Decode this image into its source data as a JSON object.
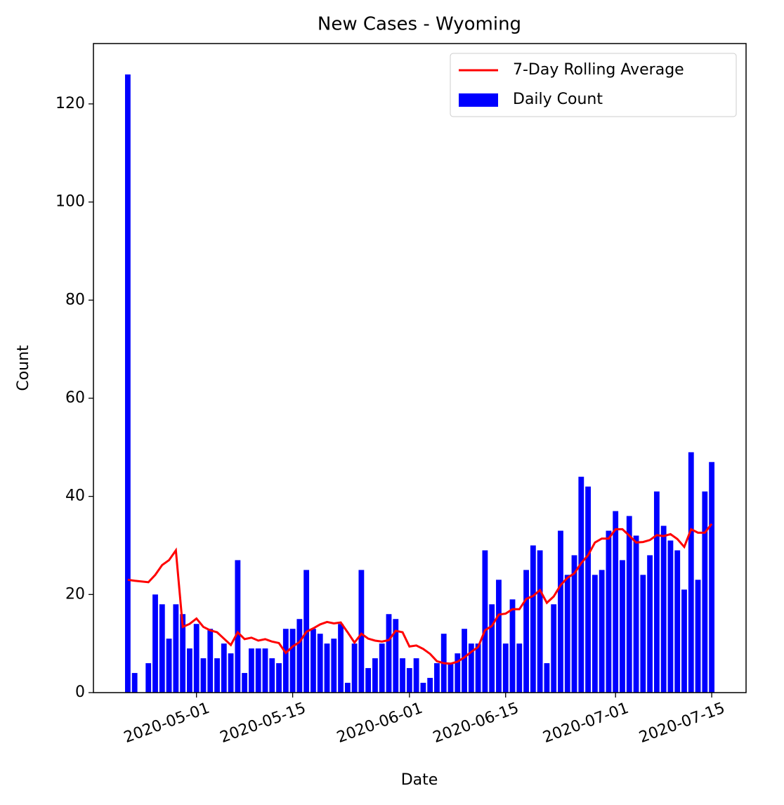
{
  "chart_data": {
    "type": "bar",
    "title": "New Cases - Wyoming",
    "x_label": "Date",
    "y_label": "Count",
    "x": [
      "2020-04-21",
      "2020-04-22",
      "2020-04-24",
      "2020-04-25",
      "2020-04-26",
      "2020-04-27",
      "2020-04-28",
      "2020-04-29",
      "2020-04-30",
      "2020-05-01",
      "2020-05-02",
      "2020-05-03",
      "2020-05-04",
      "2020-05-05",
      "2020-05-06",
      "2020-05-07",
      "2020-05-08",
      "2020-05-09",
      "2020-05-10",
      "2020-05-11",
      "2020-05-12",
      "2020-05-13",
      "2020-05-14",
      "2020-05-15",
      "2020-05-16",
      "2020-05-17",
      "2020-05-18",
      "2020-05-19",
      "2020-05-20",
      "2020-05-21",
      "2020-05-22",
      "2020-05-23",
      "2020-05-24",
      "2020-05-25",
      "2020-05-26",
      "2020-05-27",
      "2020-05-28",
      "2020-05-29",
      "2020-05-30",
      "2020-05-31",
      "2020-06-01",
      "2020-06-02",
      "2020-06-03",
      "2020-06-04",
      "2020-06-05",
      "2020-06-06",
      "2020-06-07",
      "2020-06-08",
      "2020-06-09",
      "2020-06-10",
      "2020-06-11",
      "2020-06-12",
      "2020-06-13",
      "2020-06-14",
      "2020-06-15",
      "2020-06-16",
      "2020-06-17",
      "2020-06-18",
      "2020-06-19",
      "2020-06-20",
      "2020-06-21",
      "2020-06-22",
      "2020-06-23",
      "2020-06-24",
      "2020-06-25",
      "2020-06-26",
      "2020-06-27",
      "2020-06-28",
      "2020-06-29",
      "2020-06-30",
      "2020-07-01",
      "2020-07-02",
      "2020-07-03",
      "2020-07-04",
      "2020-07-05",
      "2020-07-06",
      "2020-07-07",
      "2020-07-08",
      "2020-07-09",
      "2020-07-10",
      "2020-07-11",
      "2020-07-12",
      "2020-07-13",
      "2020-07-14",
      "2020-07-15"
    ],
    "series": [
      {
        "name": "7-Day Rolling Average",
        "type": "line",
        "color": "#ff0000",
        "values": [
          23,
          22.8,
          22.5,
          24,
          26,
          27,
          29,
          13.4,
          14,
          15.1,
          13.4,
          12.7,
          12.3,
          11,
          9.7,
          12.3,
          10.9,
          11.2,
          10.6,
          10.9,
          10.4,
          10.1,
          8.1,
          9.4,
          10.3,
          12.4,
          13.1,
          13.9,
          14.4,
          14.1,
          14.3,
          12.3,
          10.2,
          12.0,
          11.0,
          10.6,
          10.4,
          10.7,
          12.6,
          12.3,
          9.4,
          9.6,
          8.9,
          7.9,
          6.4,
          6.0,
          5.9,
          6.3,
          7.2,
          8.3,
          9.3,
          12.7,
          13.6,
          15.9,
          16.1,
          17.0,
          17.0,
          19.1,
          19.7,
          20.9,
          18.3,
          19.6,
          21.9,
          23.4,
          24.3,
          26.4,
          28.0,
          30.6,
          31.4,
          31.4,
          33.3,
          33.3,
          32.0,
          30.6,
          30.7,
          31.1,
          32.1,
          31.9,
          32.3,
          31.3,
          29.7,
          33.3,
          32.6,
          32.6,
          34.4
        ]
      },
      {
        "name": "Daily Count",
        "type": "bar",
        "color": "#0000ff",
        "values": [
          126,
          4,
          6,
          20,
          18,
          11,
          18,
          16,
          9,
          14,
          7,
          13,
          7,
          10,
          8,
          27,
          4,
          9,
          9,
          9,
          7,
          6,
          13,
          13,
          15,
          25,
          13,
          12,
          10,
          11,
          14,
          2,
          10,
          25,
          5,
          7,
          10,
          16,
          15,
          7,
          5,
          7,
          2,
          3,
          6,
          12,
          6,
          8,
          13,
          10,
          10,
          29,
          18,
          23,
          10,
          19,
          10,
          25,
          30,
          29,
          6,
          18,
          33,
          24,
          28,
          44,
          42,
          24,
          25,
          33,
          37,
          27,
          36,
          32,
          24,
          28,
          41,
          34,
          31,
          29,
          21,
          49,
          23,
          41,
          47
        ]
      }
    ],
    "xlim": [
      "2020-04-16",
      "2020-07-20"
    ],
    "xticks": [
      "2020-05-01",
      "2020-05-15",
      "2020-06-01",
      "2020-06-15",
      "2020-07-01",
      "2020-07-15"
    ],
    "ylim": [
      0,
      132.3
    ],
    "yticks": [
      0,
      20,
      40,
      60,
      80,
      100,
      120
    ],
    "legend": "upper right"
  }
}
